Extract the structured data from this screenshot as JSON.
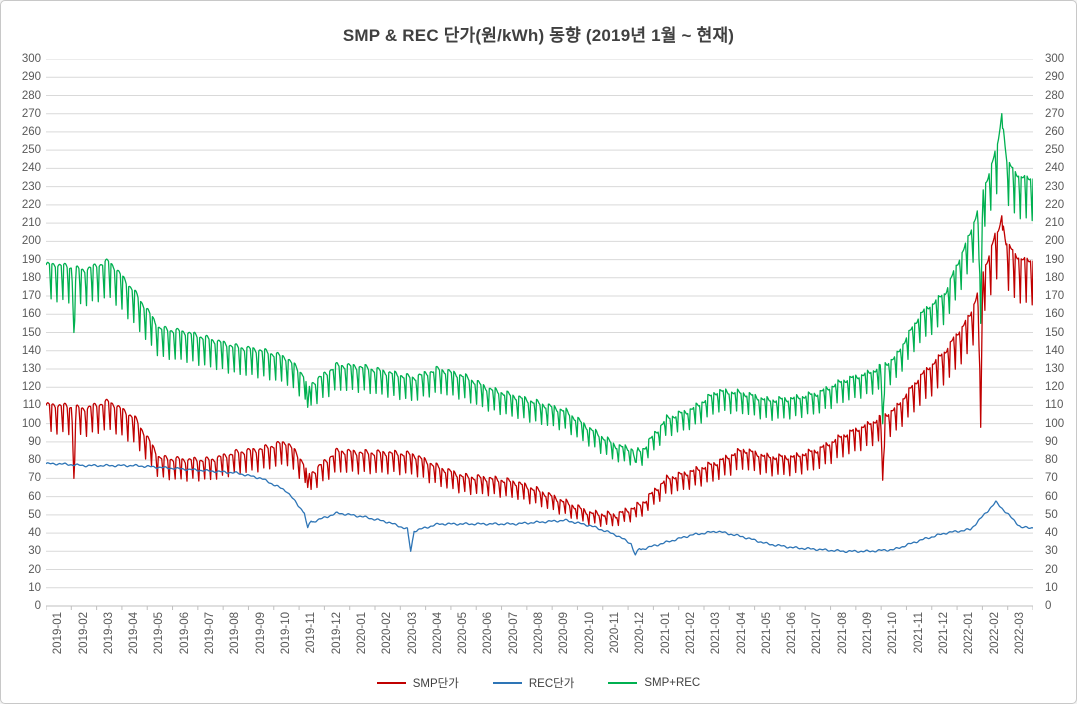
{
  "title": "SMP & REC 단가(원/kWh) 동향 (2019년 1월 ~ 현재)",
  "colors": {
    "smp": "#C00000",
    "rec": "#2E75B6",
    "smp_rec": "#00B050",
    "grid": "#D9D9D9",
    "axis": "#BFBFBF",
    "tick_text": "#595959",
    "title_text": "#404040"
  },
  "chart_data": {
    "type": "line",
    "title": "SMP & REC 단가(원/kWh) 동향 (2019년 1월 ~ 현재)",
    "xlabel": "",
    "ylabel": "원/kWh",
    "ylim": [
      0,
      300
    ],
    "ytick_step": 10,
    "yticks": [
      0,
      10,
      20,
      30,
      40,
      50,
      60,
      70,
      80,
      90,
      100,
      110,
      120,
      130,
      140,
      150,
      160,
      170,
      180,
      190,
      200,
      210,
      220,
      230,
      240,
      250,
      260,
      270,
      280,
      290,
      300
    ],
    "dual_y_axis": true,
    "grid": true,
    "legend_position": "bottom",
    "x_label_rotation": -90,
    "sampling": "daily series shown in chart; values below are monthly anchor estimates read from the plot",
    "categories": [
      "2019-01",
      "2019-02",
      "2019-03",
      "2019-04",
      "2019-05",
      "2019-06",
      "2019-07",
      "2019-08",
      "2019-09",
      "2019-10",
      "2019-11",
      "2019-12",
      "2020-01",
      "2020-02",
      "2020-03",
      "2020-04",
      "2020-05",
      "2020-06",
      "2020-07",
      "2020-08",
      "2020-09",
      "2020-10",
      "2020-11",
      "2020-12",
      "2021-01",
      "2021-02",
      "2021-03",
      "2021-04",
      "2021-05",
      "2021-06",
      "2021-07",
      "2021-08",
      "2021-09",
      "2021-10",
      "2021-11",
      "2021-12",
      "2022-01",
      "2022-02",
      "2022-03"
    ],
    "series": [
      {
        "name": "SMP단가",
        "color": "#C00000",
        "values": [
          110,
          108,
          112,
          103,
          81,
          80,
          80,
          84,
          86,
          90,
          73,
          85,
          84,
          84,
          83,
          76,
          71,
          70,
          68,
          63,
          57,
          51,
          50,
          56,
          70,
          74,
          79,
          86,
          82,
          82,
          86,
          94,
          100,
          108,
          126,
          140,
          160,
          205,
          190
        ],
        "texture": {
          "weekly_dip_frac": 0.13,
          "jitter": 1.4
        }
      },
      {
        "name": "REC단가",
        "color": "#2E75B6",
        "values": [
          78,
          77,
          77,
          77,
          76,
          75,
          74,
          73,
          70,
          63,
          46,
          51,
          49,
          46,
          41,
          45,
          45,
          45,
          45,
          46,
          47,
          44,
          39,
          31,
          35,
          39,
          41,
          38,
          34,
          32,
          31,
          30,
          30,
          31,
          36,
          40,
          42,
          57,
          43
        ],
        "texture": {
          "weekly_dip_frac": 0.0,
          "jitter": 0.5
        }
      },
      {
        "name": "SMP+REC",
        "color": "#00B050",
        "values": [
          187,
          184,
          189,
          172,
          152,
          150,
          146,
          142,
          140,
          136,
          122,
          132,
          131,
          128,
          125,
          130,
          126,
          119,
          115,
          111,
          107,
          97,
          88,
          85,
          103,
          108,
          118,
          117,
          113,
          114,
          117,
          124,
          128,
          136,
          160,
          172,
          205,
          250,
          235
        ],
        "texture": {
          "weekly_dip_frac": 0.1,
          "jitter": 1.4
        }
      }
    ],
    "anomalies": [
      {
        "series": "SMP단가",
        "x": "2019-02",
        "day": 3,
        "value": 70,
        "spread": 2.5
      },
      {
        "series": "SMP+REC",
        "x": "2019-02",
        "day": 3,
        "value": 150,
        "spread": 2.5
      },
      {
        "series": "SMP단가",
        "x": "2019-11",
        "day": 10,
        "value": 65,
        "spread": 2.5
      },
      {
        "series": "SMP+REC",
        "x": "2019-11",
        "day": 10,
        "value": 109,
        "spread": 2.5
      },
      {
        "series": "REC단가",
        "x": "2019-11",
        "day": 10,
        "value": 43,
        "spread": 4
      },
      {
        "series": "REC단가",
        "x": "2020-03",
        "day": 12,
        "value": 30,
        "spread": 4
      },
      {
        "series": "SMP+REC",
        "x": "2020-12",
        "day": 8,
        "value": 79,
        "spread": 3
      },
      {
        "series": "REC단가",
        "x": "2020-12",
        "day": 8,
        "value": 28,
        "spread": 5
      },
      {
        "series": "SMP단가",
        "x": "2021-10",
        "day": 1,
        "value": 69,
        "spread": 2.5
      },
      {
        "series": "SMP+REC",
        "x": "2021-10",
        "day": 1,
        "value": 100,
        "spread": 2.5
      },
      {
        "series": "SMP단가",
        "x": "2022-01",
        "day": 27,
        "value": 98,
        "spread": 2.5
      },
      {
        "series": "SMP+REC",
        "x": "2022-01",
        "day": 27,
        "value": 155,
        "spread": 2.5
      },
      {
        "series": "SMP+REC",
        "x": "2022-02",
        "day": 22,
        "value": 270,
        "spread": 6
      },
      {
        "series": "SMP단가",
        "x": "2022-02",
        "day": 22,
        "value": 214,
        "spread": 5
      }
    ]
  },
  "legend": {
    "items": [
      {
        "label": "SMP단가",
        "color": "#C00000"
      },
      {
        "label": "REC단가",
        "color": "#2E75B6"
      },
      {
        "label": "SMP+REC",
        "color": "#00B050"
      }
    ]
  }
}
